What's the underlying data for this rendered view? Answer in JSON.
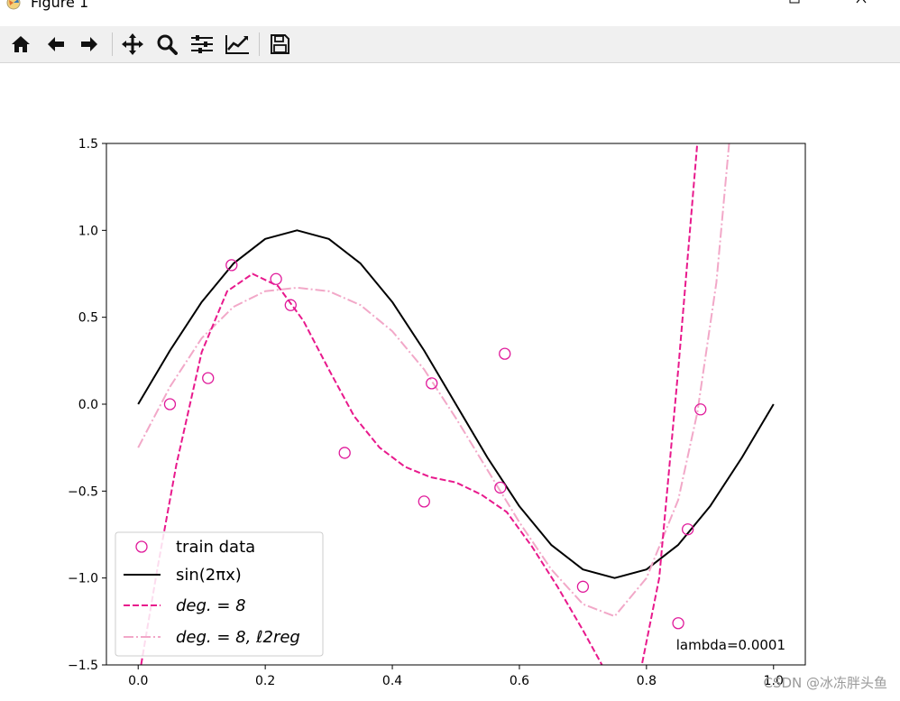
{
  "window": {
    "title": "Figure 1",
    "minimize_icon": "minimize-icon",
    "maximize_icon": "maximize-icon",
    "close_icon": "close-icon"
  },
  "toolbar": {
    "buttons": [
      "home-icon",
      "back-arrow-icon",
      "forward-arrow-icon",
      "pan-icon",
      "zoom-icon",
      "subplots-icon",
      "edit-curves-icon",
      "save-icon"
    ]
  },
  "watermark": "CSDN @冰冻胖头鱼",
  "colors": {
    "train": "#e0199a",
    "sin": "#000000",
    "deg8": "#e8198c",
    "reg": "#f2a8c8",
    "toolbar_bg": "#f0f0f0"
  },
  "chart_data": {
    "type": "line",
    "xlim": [
      -0.05,
      1.05
    ],
    "ylim": [
      -1.5,
      1.5
    ],
    "xticks": [
      0.0,
      0.2,
      0.4,
      0.6,
      0.8,
      1.0
    ],
    "xtick_labels": [
      "0.0",
      "0.2",
      "0.4",
      "0.6",
      "0.8",
      "1.0"
    ],
    "yticks": [
      -1.5,
      -1.0,
      -0.5,
      0.0,
      0.5,
      1.0,
      1.5
    ],
    "ytick_labels": [
      "−1.5",
      "−1.0",
      "−0.5",
      "0.0",
      "0.5",
      "1.0",
      "1.5"
    ],
    "grid": false,
    "legend": {
      "position": "lower-left",
      "entries": [
        "train data",
        "sin(2πx)",
        "deg. = 8",
        "deg. = 8, ℓ2reg"
      ]
    },
    "annotation": "lambda=0.0001",
    "train_data": {
      "x": [
        0.05,
        0.11,
        0.147,
        0.217,
        0.24,
        0.325,
        0.45,
        0.462,
        0.57,
        0.577,
        0.7,
        0.85,
        0.865,
        0.885
      ],
      "y": [
        0.0,
        0.15,
        0.8,
        0.72,
        0.57,
        -0.28,
        -0.56,
        0.12,
        -0.48,
        0.29,
        -1.05,
        -1.26,
        -0.72,
        -0.03
      ]
    },
    "sin": {
      "x": [
        0.0,
        0.05,
        0.1,
        0.15,
        0.2,
        0.25,
        0.3,
        0.35,
        0.4,
        0.45,
        0.5,
        0.55,
        0.6,
        0.65,
        0.7,
        0.75,
        0.8,
        0.85,
        0.9,
        0.95,
        1.0
      ],
      "y": [
        0.0,
        0.309,
        0.588,
        0.809,
        0.951,
        1.0,
        0.951,
        0.809,
        0.588,
        0.309,
        0.0,
        -0.309,
        -0.588,
        -0.809,
        -0.951,
        -1.0,
        -0.951,
        -0.809,
        -0.588,
        -0.309,
        0.0
      ]
    },
    "deg8": {
      "x": [
        0.0,
        0.03,
        0.06,
        0.1,
        0.14,
        0.18,
        0.22,
        0.26,
        0.3,
        0.34,
        0.38,
        0.42,
        0.46,
        0.5,
        0.54,
        0.58,
        0.62,
        0.66,
        0.7,
        0.73,
        0.76,
        0.79,
        0.82,
        0.85,
        0.88
      ],
      "y": [
        -1.6,
        -0.95,
        -0.35,
        0.3,
        0.65,
        0.75,
        0.68,
        0.48,
        0.2,
        -0.07,
        -0.25,
        -0.36,
        -0.42,
        -0.45,
        -0.52,
        -0.62,
        -0.82,
        -1.05,
        -1.3,
        -1.5,
        -1.65,
        -1.55,
        -1.0,
        0.2,
        1.5
      ]
    },
    "reg": {
      "x": [
        0.0,
        0.05,
        0.1,
        0.15,
        0.2,
        0.25,
        0.3,
        0.35,
        0.4,
        0.45,
        0.5,
        0.55,
        0.6,
        0.65,
        0.7,
        0.75,
        0.8,
        0.85,
        0.88,
        0.91,
        0.93
      ],
      "y": [
        -0.25,
        0.1,
        0.38,
        0.56,
        0.65,
        0.67,
        0.65,
        0.57,
        0.42,
        0.2,
        -0.08,
        -0.38,
        -0.68,
        -0.95,
        -1.15,
        -1.22,
        -1.0,
        -0.55,
        -0.05,
        0.7,
        1.5
      ]
    }
  }
}
